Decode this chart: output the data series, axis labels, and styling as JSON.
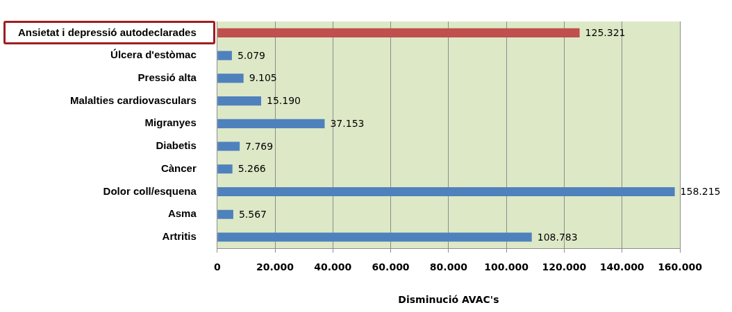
{
  "chart_data": {
    "type": "bar",
    "orientation": "horizontal",
    "xlabel": "Disminució AVAC's",
    "categories": [
      "Ansietat i depressió autodeclarades",
      "Úlcera d'estòmac",
      "Pressió alta",
      "Malalties cardiovasculars",
      "Migranyes",
      "Diabetis",
      "Càncer",
      "Dolor coll/esquena",
      "Asma",
      "Artritis"
    ],
    "values": [
      125321,
      5079,
      9105,
      15190,
      37153,
      7769,
      5266,
      158215,
      5567,
      108783
    ],
    "value_labels": [
      "125.321",
      "5.079",
      "9.105",
      "15.190",
      "37.153",
      "7.769",
      "5.266",
      "158.215",
      "5.567",
      "108.783"
    ],
    "colors": [
      "#c0504d",
      "#4f81bd",
      "#4f81bd",
      "#4f81bd",
      "#4f81bd",
      "#4f81bd",
      "#4f81bd",
      "#4f81bd",
      "#4f81bd",
      "#4f81bd"
    ],
    "xlim": [
      0,
      160000
    ],
    "xticks": [
      {
        "value": 0,
        "label": "0"
      },
      {
        "value": 20000,
        "label": "20.000"
      },
      {
        "value": 40000,
        "label": "40.000"
      },
      {
        "value": 60000,
        "label": "60.000"
      },
      {
        "value": 80000,
        "label": "80.000"
      },
      {
        "value": 100000,
        "label": "100.000"
      },
      {
        "value": 120000,
        "label": "120.000"
      },
      {
        "value": 140000,
        "label": "140.000"
      },
      {
        "value": 160000,
        "label": "160.000"
      }
    ],
    "grid": "x",
    "legend": false
  }
}
